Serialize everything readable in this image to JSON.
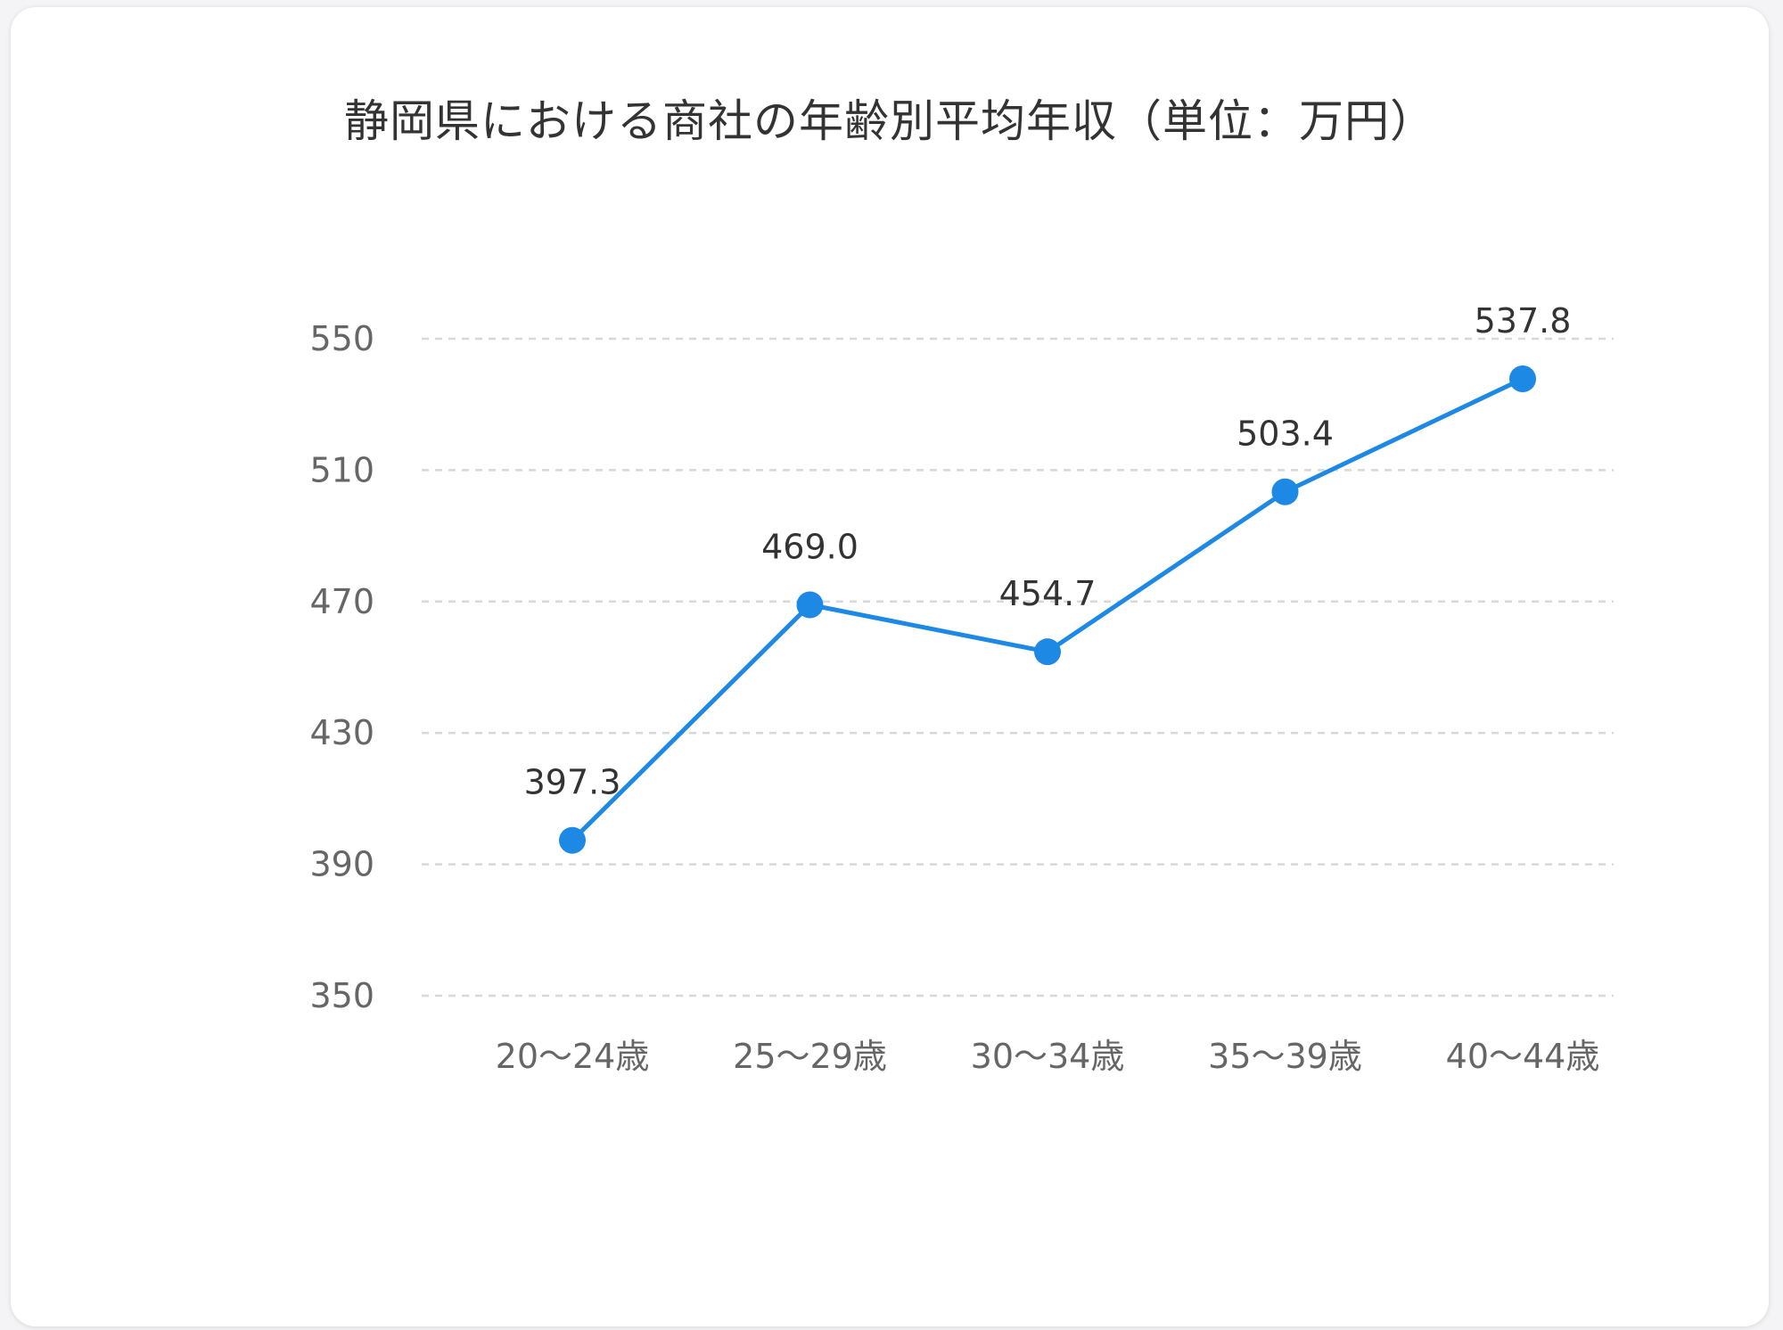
{
  "colors": {
    "line": "#1e88e5",
    "grid": "#d8d8d8",
    "card": "#ffffff",
    "background": "#f4f4f6"
  },
  "chart_data": {
    "type": "line",
    "title": "静岡県における商社の年齢別平均年収（単位：万円）",
    "xlabel": "",
    "ylabel": "",
    "categories": [
      "20〜24歳",
      "25〜29歳",
      "30〜34歳",
      "35〜39歳",
      "40〜44歳"
    ],
    "values": [
      397.3,
      469.0,
      454.7,
      503.4,
      537.8
    ],
    "value_labels": [
      "397.3",
      "469.0",
      "454.7",
      "503.4",
      "537.8"
    ],
    "ylim": [
      350,
      550
    ],
    "yticks": [
      350,
      390,
      430,
      470,
      510,
      550
    ],
    "grid": true,
    "grid_style": "dashed",
    "legend": "none"
  }
}
